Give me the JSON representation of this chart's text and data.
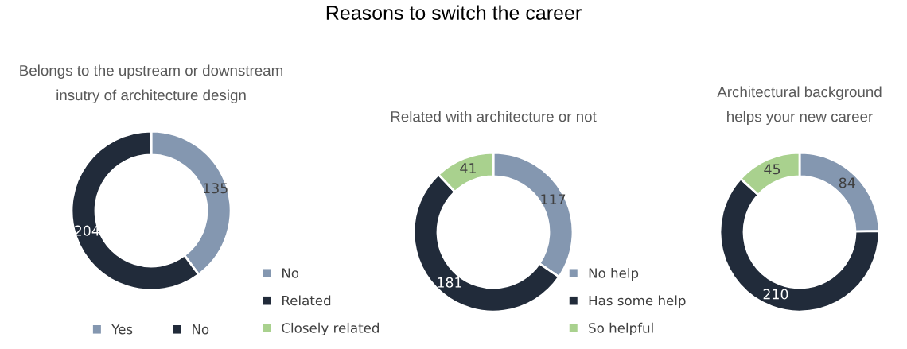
{
  "chart_data": [
    {
      "type": "donut",
      "title": "Reasons to switch the career",
      "subtitle": "Belongs to the upstream or downstream\ninsutry of architecture design",
      "categories": [
        "Yes",
        "No"
      ],
      "values": [
        135,
        204
      ],
      "colors": [
        "#8497b0",
        "#212b3a"
      ],
      "data_labels": true,
      "legend": "bottom"
    },
    {
      "type": "donut",
      "subtitle": "Related with architecture or not",
      "categories": [
        "No",
        "Related",
        "Closely related"
      ],
      "values": [
        117,
        181,
        41
      ],
      "colors": [
        "#8497b0",
        "#212b3a",
        "#a9d18e"
      ],
      "data_labels": true,
      "legend": "bottom left"
    },
    {
      "type": "donut",
      "subtitle": "Architectural background\nhelps your new career",
      "categories": [
        "No help",
        "Has some help",
        "So helpful"
      ],
      "values": [
        84,
        210,
        45
      ],
      "colors": [
        "#8497b0",
        "#212b3a",
        "#a9d18e"
      ],
      "data_labels": true,
      "legend": "bottom left"
    }
  ]
}
